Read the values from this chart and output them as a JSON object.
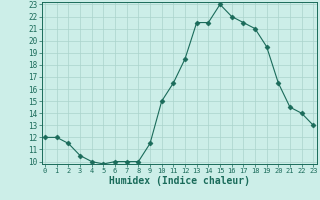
{
  "x": [
    0,
    1,
    2,
    3,
    4,
    5,
    6,
    7,
    8,
    9,
    10,
    11,
    12,
    13,
    14,
    15,
    16,
    17,
    18,
    19,
    20,
    21,
    22,
    23
  ],
  "y": [
    12,
    12,
    11.5,
    10.5,
    10,
    9.8,
    10,
    10,
    10,
    11.5,
    15,
    16.5,
    18.5,
    21.5,
    21.5,
    23,
    22,
    21.5,
    21,
    19.5,
    16.5,
    14.5,
    14,
    13
  ],
  "line_color": "#1a6b5a",
  "marker": "D",
  "marker_size": 2.5,
  "bg_color": "#cceee8",
  "grid_major_color": "#aad4cc",
  "grid_minor_color": "#bde0d8",
  "tick_color": "#1a6b5a",
  "xlabel": "Humidex (Indice chaleur)",
  "xlabel_fontsize": 7,
  "ylim": [
    10,
    23
  ],
  "xlim": [
    0,
    23
  ],
  "yticks": [
    10,
    11,
    12,
    13,
    14,
    15,
    16,
    17,
    18,
    19,
    20,
    21,
    22,
    23
  ],
  "xticks": [
    0,
    1,
    2,
    3,
    4,
    5,
    6,
    7,
    8,
    9,
    10,
    11,
    12,
    13,
    14,
    15,
    16,
    17,
    18,
    19,
    20,
    21,
    22,
    23
  ],
  "tick_fontsize": 5,
  "linewidth": 0.8
}
